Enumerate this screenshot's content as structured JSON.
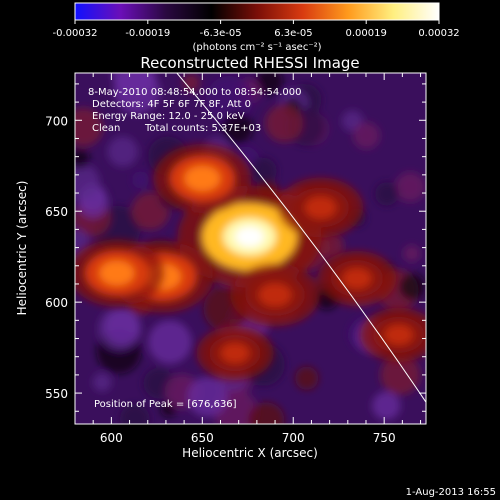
{
  "chart_data": {
    "type": "heatmap",
    "title": "Reconstructed RHESSI Image",
    "xlabel": "Heliocentric X (arcsec)",
    "ylabel": "Heliocentric Y (arcsec)",
    "xlim": [
      580,
      773
    ],
    "ylim": [
      533,
      726
    ],
    "x_ticks": [
      600,
      650,
      700,
      750
    ],
    "y_ticks": [
      550,
      600,
      650,
      700
    ],
    "colorbar": {
      "label": "(photons cm⁻² s⁻¹ asec⁻²)",
      "min": -0.00032,
      "max": 0.00032,
      "tick_labels": [
        "-0.00032",
        "-0.00019",
        "-6.3e-05",
        "6.3e-05",
        "0.00019",
        "0.00032"
      ],
      "colors": [
        "#1010ff",
        "#6b0fb8",
        "#2a0840",
        "#000000",
        "#7a0e08",
        "#d83a10",
        "#ff9a1c",
        "#ffef80",
        "#ffffff"
      ]
    },
    "annotations": {
      "time_range": "8-May-2010 08:48:54.000 to 08:54:54.000",
      "detectors": "Detectors: 4F 5F 6F 7F 8F, Att 0",
      "energy": "Energy Range: 12.0 - 25.0 keV",
      "method": "Clean",
      "counts": "Total counts: 5.37E+03",
      "peak": "Position of Peak = [676,636]"
    },
    "sources": [
      {
        "x": 676,
        "y": 636,
        "relative_intensity": 1.0
      },
      {
        "x": 650,
        "y": 668,
        "relative_intensity": 0.45
      },
      {
        "x": 628,
        "y": 614,
        "relative_intensity": 0.5
      },
      {
        "x": 603,
        "y": 616,
        "relative_intensity": 0.42
      },
      {
        "x": 690,
        "y": 604,
        "relative_intensity": 0.35
      },
      {
        "x": 715,
        "y": 652,
        "relative_intensity": 0.3
      },
      {
        "x": 735,
        "y": 613,
        "relative_intensity": 0.22
      },
      {
        "x": 668,
        "y": 572,
        "relative_intensity": 0.2
      },
      {
        "x": 758,
        "y": 582,
        "relative_intensity": 0.2
      }
    ],
    "limb_arc": {
      "from": [
        636,
        726
      ],
      "to": [
        773,
        545
      ]
    }
  },
  "footer": {
    "timestamp": "1-Aug-2013 16:55"
  },
  "colors": {
    "background": "#000000",
    "foreground": "#ffffff"
  }
}
